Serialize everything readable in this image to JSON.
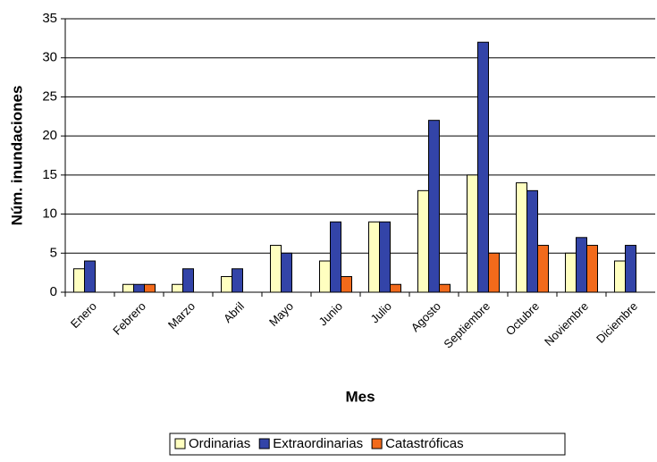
{
  "chart_data": {
    "type": "bar",
    "x_label": "Mes",
    "y_label": "Núm. inundaciones",
    "categories": [
      "Enero",
      "Febrero",
      "Marzo",
      "Abril",
      "Mayo",
      "Junio",
      "Julio",
      "Agosto",
      "Septiembre",
      "Octubre",
      "Noviembre",
      "Diciembre"
    ],
    "series": [
      {
        "name": "Ordinarias",
        "color": "#ffffc0",
        "values": [
          3,
          1,
          1,
          2,
          6,
          4,
          9,
          13,
          15,
          14,
          5,
          4
        ]
      },
      {
        "name": "Extraordinarias",
        "color": "#3344a8",
        "values": [
          4,
          1,
          3,
          3,
          5,
          9,
          9,
          22,
          32,
          13,
          7,
          6
        ]
      },
      {
        "name": "Catastróficas",
        "color": "#f26a1b",
        "values": [
          0,
          1,
          0,
          0,
          0,
          2,
          1,
          1,
          5,
          6,
          6,
          0
        ]
      }
    ],
    "ylim": [
      0,
      35
    ],
    "yticks": [
      0,
      5,
      10,
      15,
      20,
      25,
      30,
      35
    ],
    "grid": true,
    "legend": "bottom"
  }
}
